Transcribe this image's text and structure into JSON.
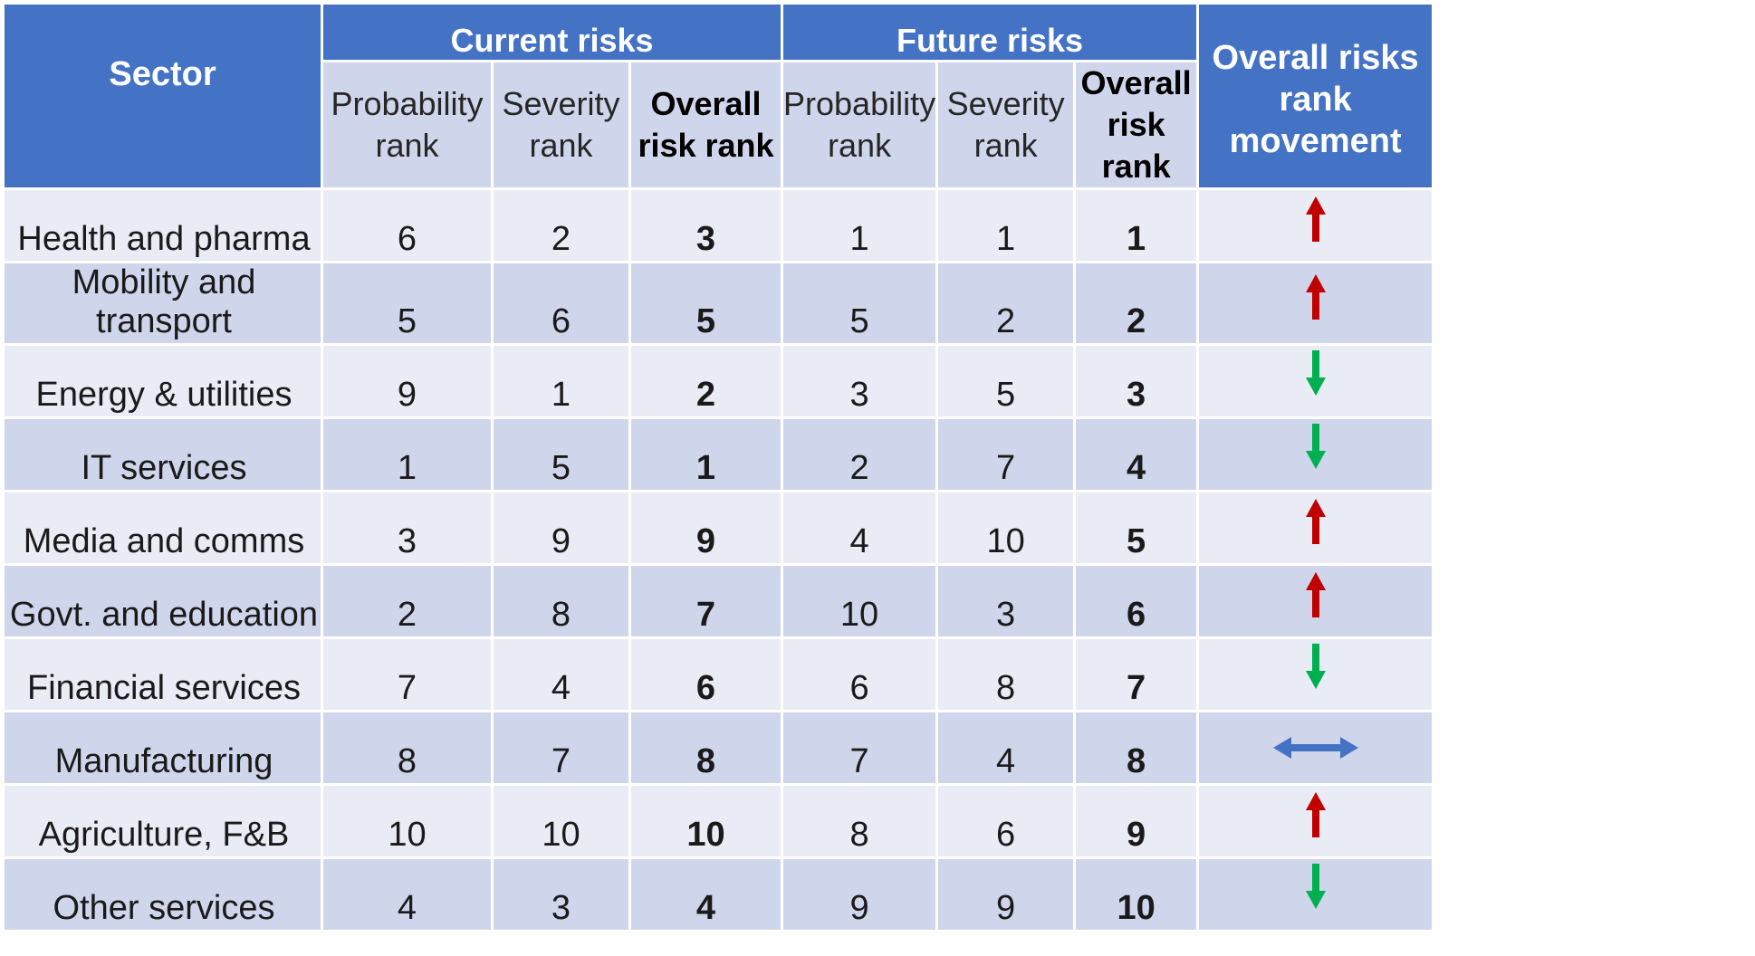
{
  "colors": {
    "header_bg": "#4472c4",
    "row_light": "#e9ebf5",
    "row_dark": "#cfd5ea",
    "arrow_up": "#c00000",
    "arrow_down": "#00b050",
    "arrow_same": "#4472c4"
  },
  "header": {
    "sector": "Sector",
    "current_group": "Current risks",
    "future_group": "Future risks",
    "movement": "Overall risks rank movement",
    "current_cols": [
      "Probability rank",
      "Severity rank",
      "Overall risk rank"
    ],
    "future_cols": [
      "Probability rank",
      "Severity rank",
      "Overall risk rank"
    ]
  },
  "chart_data": {
    "type": "table",
    "columns": [
      "Sector",
      "Current Probability rank",
      "Current Severity rank",
      "Current Overall risk rank",
      "Future Probability rank",
      "Future Severity rank",
      "Future Overall risk rank",
      "Overall risks rank movement"
    ],
    "rows": [
      {
        "sector": "Health and pharma",
        "cur_prob": "6",
        "cur_sev": "2",
        "cur_overall": "3",
        "fut_prob": "1",
        "fut_sev": "1",
        "fut_overall": "1",
        "movement": "up"
      },
      {
        "sector": "Mobility and transport",
        "cur_prob": "5",
        "cur_sev": "6",
        "cur_overall": "5",
        "fut_prob": "5",
        "fut_sev": "2",
        "fut_overall": "2",
        "movement": "up"
      },
      {
        "sector": "Energy & utilities",
        "cur_prob": "9",
        "cur_sev": "1",
        "cur_overall": "2",
        "fut_prob": "3",
        "fut_sev": "5",
        "fut_overall": "3",
        "movement": "down"
      },
      {
        "sector": "IT services",
        "cur_prob": "1",
        "cur_sev": "5",
        "cur_overall": "1",
        "fut_prob": "2",
        "fut_sev": "7",
        "fut_overall": "4",
        "movement": "down"
      },
      {
        "sector": "Media and comms",
        "cur_prob": "3",
        "cur_sev": "9",
        "cur_overall": "9",
        "fut_prob": "4",
        "fut_sev": "10",
        "fut_overall": "5",
        "movement": "up"
      },
      {
        "sector": "Govt. and education",
        "cur_prob": "2",
        "cur_sev": "8",
        "cur_overall": "7",
        "fut_prob": "10",
        "fut_sev": "3",
        "fut_overall": "6",
        "movement": "up"
      },
      {
        "sector": "Financial services",
        "cur_prob": "7",
        "cur_sev": "4",
        "cur_overall": "6",
        "fut_prob": "6",
        "fut_sev": "8",
        "fut_overall": "7",
        "movement": "down"
      },
      {
        "sector": "Manufacturing",
        "cur_prob": "8",
        "cur_sev": "7",
        "cur_overall": "8",
        "fut_prob": "7",
        "fut_sev": "4",
        "fut_overall": "8",
        "movement": "same"
      },
      {
        "sector": "Agriculture, F&B",
        "cur_prob": "10",
        "cur_sev": "10",
        "cur_overall": "10",
        "fut_prob": "8",
        "fut_sev": "6",
        "fut_overall": "9",
        "movement": "up"
      },
      {
        "sector": "Other services",
        "cur_prob": "4",
        "cur_sev": "3",
        "cur_overall": "4",
        "fut_prob": "9",
        "fut_sev": "9",
        "fut_overall": "10",
        "movement": "down"
      }
    ]
  }
}
